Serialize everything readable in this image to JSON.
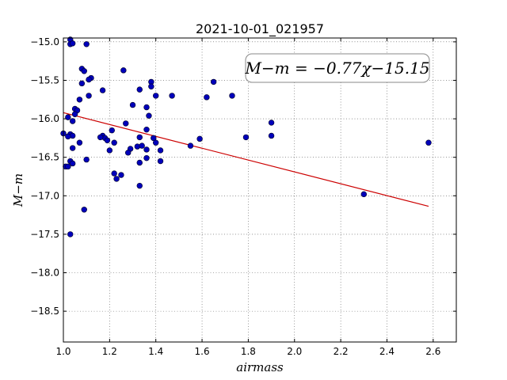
{
  "chart_data": {
    "type": "scatter",
    "title": "2021-10-01_021957",
    "xlabel": "airmass",
    "ylabel": "M−m",
    "xlim": [
      1.0,
      2.7
    ],
    "ylim": [
      -14.95,
      -18.9
    ],
    "y_inverted": true,
    "grid": true,
    "x_ticks": [
      "1.0",
      "1.2",
      "1.4",
      "1.6",
      "1.8",
      "2.0",
      "2.2",
      "2.4",
      "2.6"
    ],
    "y_ticks": [
      "−15.0",
      "−15.5",
      "−16.0",
      "−16.5",
      "−17.0",
      "−17.5",
      "−18.0",
      "−18.5"
    ],
    "fit_label": "M−m = −0.77χ−15.15",
    "fit": {
      "slope": -0.77,
      "intercept": -15.15,
      "x_range": [
        1.0,
        2.58
      ],
      "color": "#cc0000"
    },
    "point_color": "#0000bb",
    "points": [
      {
        "x": 1.03,
        "y": -14.97
      },
      {
        "x": 1.03,
        "y": -15.03
      },
      {
        "x": 1.04,
        "y": -15.02
      },
      {
        "x": 1.1,
        "y": -15.03
      },
      {
        "x": 1.26,
        "y": -15.37
      },
      {
        "x": 1.08,
        "y": -15.35
      },
      {
        "x": 1.09,
        "y": -15.38
      },
      {
        "x": 1.12,
        "y": -15.47
      },
      {
        "x": 1.11,
        "y": -15.49
      },
      {
        "x": 1.08,
        "y": -15.54
      },
      {
        "x": 1.38,
        "y": -15.52
      },
      {
        "x": 1.38,
        "y": -15.58
      },
      {
        "x": 1.65,
        "y": -15.52
      },
      {
        "x": 1.33,
        "y": -15.62
      },
      {
        "x": 1.17,
        "y": -15.63
      },
      {
        "x": 1.11,
        "y": -15.7
      },
      {
        "x": 1.4,
        "y": -15.7
      },
      {
        "x": 1.47,
        "y": -15.7
      },
      {
        "x": 1.62,
        "y": -15.72
      },
      {
        "x": 1.73,
        "y": -15.7
      },
      {
        "x": 1.07,
        "y": -15.75
      },
      {
        "x": 1.3,
        "y": -15.82
      },
      {
        "x": 1.36,
        "y": -15.85
      },
      {
        "x": 1.05,
        "y": -15.87
      },
      {
        "x": 1.06,
        "y": -15.89
      },
      {
        "x": 1.05,
        "y": -15.94
      },
      {
        "x": 1.37,
        "y": -15.96
      },
      {
        "x": 1.02,
        "y": -15.98
      },
      {
        "x": 1.04,
        "y": -16.03
      },
      {
        "x": 1.27,
        "y": -16.06
      },
      {
        "x": 1.9,
        "y": -16.05
      },
      {
        "x": 1.36,
        "y": -16.14
      },
      {
        "x": 1.21,
        "y": -16.15
      },
      {
        "x": 1.0,
        "y": -16.19
      },
      {
        "x": 1.03,
        "y": -16.2
      },
      {
        "x": 1.04,
        "y": -16.22
      },
      {
        "x": 1.02,
        "y": -16.23
      },
      {
        "x": 1.17,
        "y": -16.22
      },
      {
        "x": 1.18,
        "y": -16.25
      },
      {
        "x": 1.16,
        "y": -16.24
      },
      {
        "x": 1.19,
        "y": -16.28
      },
      {
        "x": 1.33,
        "y": -16.24
      },
      {
        "x": 1.39,
        "y": -16.25
      },
      {
        "x": 1.59,
        "y": -16.26
      },
      {
        "x": 1.79,
        "y": -16.24
      },
      {
        "x": 1.9,
        "y": -16.22
      },
      {
        "x": 2.58,
        "y": -16.31
      },
      {
        "x": 1.07,
        "y": -16.31
      },
      {
        "x": 1.22,
        "y": -16.31
      },
      {
        "x": 1.4,
        "y": -16.31
      },
      {
        "x": 1.32,
        "y": -16.36
      },
      {
        "x": 1.34,
        "y": -16.35
      },
      {
        "x": 1.55,
        "y": -16.35
      },
      {
        "x": 1.04,
        "y": -16.38
      },
      {
        "x": 1.29,
        "y": -16.39
      },
      {
        "x": 1.36,
        "y": -16.4
      },
      {
        "x": 1.2,
        "y": -16.41
      },
      {
        "x": 1.42,
        "y": -16.41
      },
      {
        "x": 1.28,
        "y": -16.44
      },
      {
        "x": 1.36,
        "y": -16.51
      },
      {
        "x": 1.1,
        "y": -16.53
      },
      {
        "x": 1.03,
        "y": -16.55
      },
      {
        "x": 1.42,
        "y": -16.55
      },
      {
        "x": 1.33,
        "y": -16.57
      },
      {
        "x": 1.04,
        "y": -16.58
      },
      {
        "x": 1.01,
        "y": -16.62
      },
      {
        "x": 1.02,
        "y": -16.62
      },
      {
        "x": 1.22,
        "y": -16.71
      },
      {
        "x": 1.25,
        "y": -16.73
      },
      {
        "x": 1.23,
        "y": -16.78
      },
      {
        "x": 1.33,
        "y": -16.87
      },
      {
        "x": 2.3,
        "y": -16.98
      },
      {
        "x": 1.09,
        "y": -17.18
      },
      {
        "x": 1.03,
        "y": -17.5
      }
    ]
  }
}
